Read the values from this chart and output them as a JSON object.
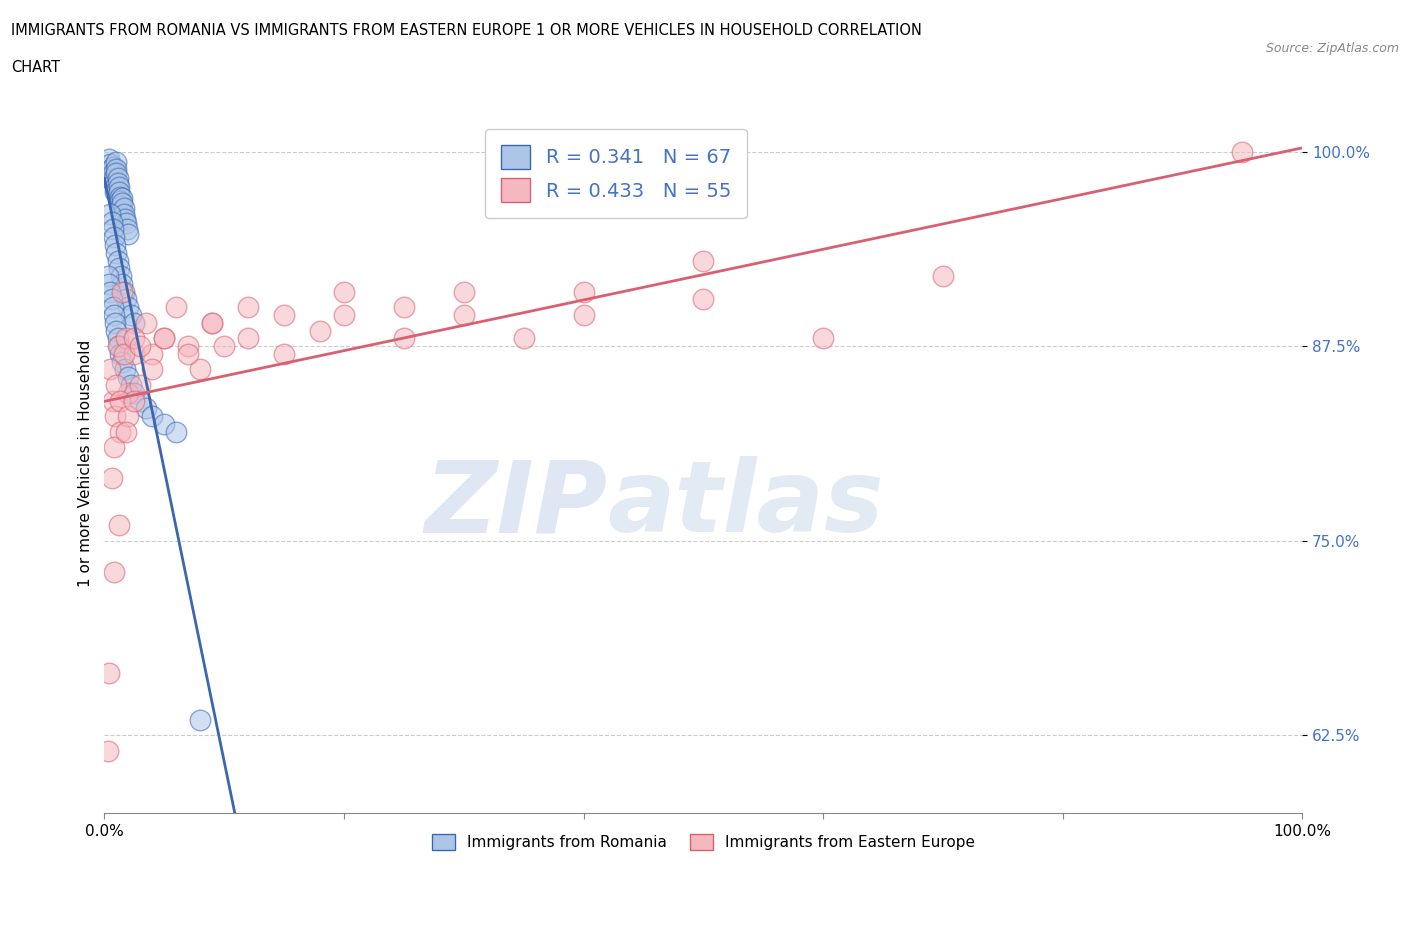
{
  "title_line1": "IMMIGRANTS FROM ROMANIA VS IMMIGRANTS FROM EASTERN EUROPE 1 OR MORE VEHICLES IN HOUSEHOLD CORRELATION",
  "title_line2": "CHART",
  "source": "Source: ZipAtlas.com",
  "ylabel": "1 or more Vehicles in Household",
  "xlim": [
    0.0,
    1.0
  ],
  "ylim": [
    0.575,
    1.025
  ],
  "x_tick_labels": [
    "0.0%",
    "",
    "",
    "",
    "",
    "100.0%"
  ],
  "y_tick_labels": [
    "62.5%",
    "75.0%",
    "87.5%",
    "100.0%"
  ],
  "y_ticks": [
    0.625,
    0.75,
    0.875,
    1.0
  ],
  "romania_R": 0.341,
  "romania_N": 67,
  "eastern_europe_R": 0.433,
  "eastern_europe_N": 55,
  "romania_color": "#adc6e8",
  "eastern_europe_color": "#f5b8c0",
  "trendline_romania_color": "#3a67b0",
  "trendline_eastern_color": "#d96070",
  "watermark_zip": "ZIP",
  "watermark_atlas": "atlas",
  "romania_x": [
    0.004,
    0.005,
    0.005,
    0.006,
    0.006,
    0.007,
    0.007,
    0.008,
    0.008,
    0.009,
    0.009,
    0.01,
    0.01,
    0.01,
    0.011,
    0.011,
    0.012,
    0.012,
    0.013,
    0.013,
    0.014,
    0.014,
    0.015,
    0.015,
    0.016,
    0.016,
    0.017,
    0.018,
    0.019,
    0.02,
    0.005,
    0.006,
    0.007,
    0.008,
    0.009,
    0.01,
    0.011,
    0.012,
    0.014,
    0.015,
    0.016,
    0.018,
    0.02,
    0.022,
    0.025,
    0.003,
    0.004,
    0.005,
    0.006,
    0.007,
    0.008,
    0.009,
    0.01,
    0.011,
    0.012,
    0.013,
    0.015,
    0.017,
    0.02,
    0.022,
    0.025,
    0.03,
    0.035,
    0.04,
    0.05,
    0.06,
    0.08
  ],
  "romania_y": [
    0.995,
    0.992,
    0.988,
    0.985,
    0.982,
    0.99,
    0.986,
    0.983,
    0.98,
    0.977,
    0.974,
    0.993,
    0.989,
    0.986,
    0.983,
    0.98,
    0.977,
    0.974,
    0.971,
    0.968,
    0.965,
    0.962,
    0.97,
    0.967,
    0.964,
    0.96,
    0.957,
    0.954,
    0.95,
    0.947,
    0.96,
    0.955,
    0.95,
    0.945,
    0.94,
    0.935,
    0.93,
    0.925,
    0.92,
    0.915,
    0.91,
    0.905,
    0.9,
    0.895,
    0.89,
    0.92,
    0.915,
    0.91,
    0.905,
    0.9,
    0.895,
    0.89,
    0.885,
    0.88,
    0.875,
    0.87,
    0.865,
    0.86,
    0.855,
    0.85,
    0.845,
    0.84,
    0.835,
    0.83,
    0.825,
    0.82,
    0.635
  ],
  "eastern_x": [
    0.003,
    0.005,
    0.007,
    0.009,
    0.011,
    0.013,
    0.015,
    0.018,
    0.02,
    0.025,
    0.03,
    0.035,
    0.04,
    0.05,
    0.06,
    0.07,
    0.08,
    0.09,
    0.1,
    0.12,
    0.15,
    0.18,
    0.2,
    0.25,
    0.3,
    0.35,
    0.4,
    0.5,
    0.6,
    0.7,
    0.004,
    0.006,
    0.008,
    0.01,
    0.013,
    0.016,
    0.02,
    0.025,
    0.03,
    0.04,
    0.05,
    0.07,
    0.09,
    0.12,
    0.15,
    0.2,
    0.25,
    0.3,
    0.4,
    0.5,
    0.008,
    0.012,
    0.018,
    0.025,
    0.95
  ],
  "eastern_y": [
    0.615,
    0.86,
    0.84,
    0.83,
    0.875,
    0.82,
    0.91,
    0.88,
    0.845,
    0.87,
    0.85,
    0.89,
    0.87,
    0.88,
    0.9,
    0.875,
    0.86,
    0.89,
    0.875,
    0.9,
    0.895,
    0.885,
    0.91,
    0.9,
    0.895,
    0.88,
    0.91,
    0.93,
    0.88,
    0.92,
    0.665,
    0.79,
    0.81,
    0.85,
    0.84,
    0.87,
    0.83,
    0.88,
    0.875,
    0.86,
    0.88,
    0.87,
    0.89,
    0.88,
    0.87,
    0.895,
    0.88,
    0.91,
    0.895,
    0.905,
    0.73,
    0.76,
    0.82,
    0.84,
    1.0
  ]
}
